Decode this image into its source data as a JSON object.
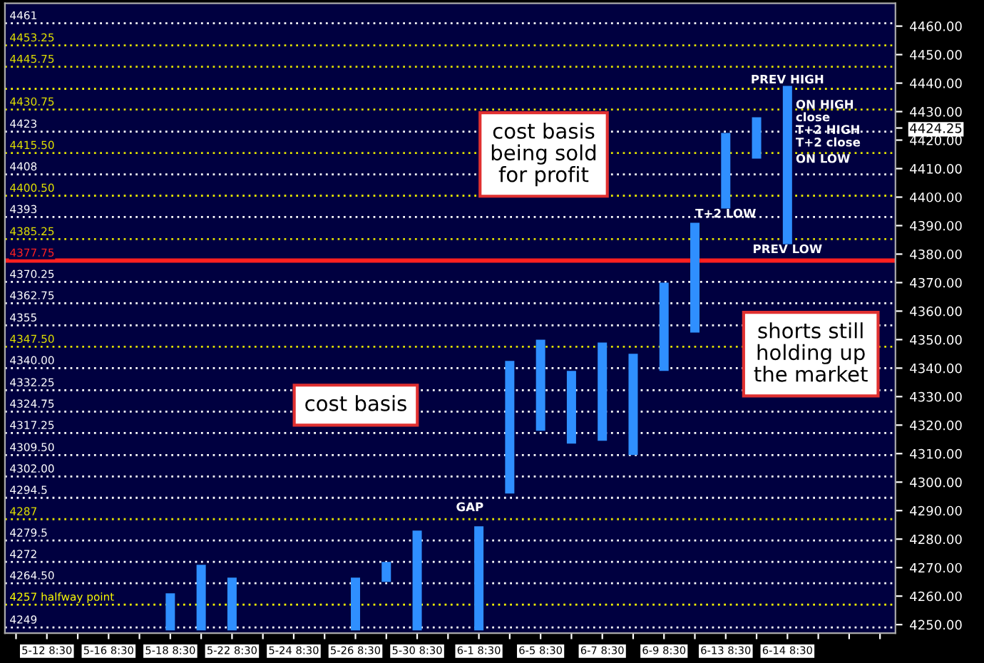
{
  "chart_data": {
    "type": "bar",
    "categories": [
      null,
      "5-12 8:30",
      null,
      "5-16 8:30",
      null,
      "5-18 8:30",
      null,
      "5-22 8:30",
      null,
      "5-24 8:30",
      null,
      "5-26 8:30",
      null,
      "5-30 8:30",
      null,
      "6-1 8:30",
      null,
      "6-5 8:30",
      null,
      "6-7 8:30",
      null,
      "6-9 8:30",
      null,
      "6-13 8:30",
      null,
      "6-14 8:30",
      null,
      null,
      null
    ],
    "base": [
      null,
      null,
      null,
      null,
      null,
      4248,
      4248,
      4248,
      null,
      null,
      null,
      4248,
      4265,
      4248,
      null,
      4248,
      4296,
      4318,
      4313.5,
      4314.5,
      4309.5,
      4339,
      4352.5,
      4396,
      4413.5,
      4383.5,
      null,
      null,
      null
    ],
    "values": [
      null,
      null,
      null,
      null,
      null,
      13,
      23,
      18.5,
      null,
      null,
      null,
      18.5,
      7,
      35,
      null,
      36.5,
      46.5,
      32,
      25.5,
      34.5,
      35.5,
      31,
      38.5,
      26.5,
      14.5,
      55.5,
      null,
      null,
      null
    ],
    "color": "#2f8fff",
    "ylim": [
      4247,
      4468
    ],
    "yticks": [
      {
        "value": 4250,
        "label": "4250.00"
      },
      {
        "value": 4260,
        "label": "4260.00"
      },
      {
        "value": 4270,
        "label": "4270.00"
      },
      {
        "value": 4280,
        "label": "4280.00"
      },
      {
        "value": 4290,
        "label": "4290.00"
      },
      {
        "value": 4300,
        "label": "4300.00"
      },
      {
        "value": 4310,
        "label": "4310.00"
      },
      {
        "value": 4320,
        "label": "4320.00"
      },
      {
        "value": 4330,
        "label": "4330.00"
      },
      {
        "value": 4340,
        "label": "4340.00"
      },
      {
        "value": 4350,
        "label": "4350.00"
      },
      {
        "value": 4360,
        "label": "4360.00"
      },
      {
        "value": 4370,
        "label": "4370.00"
      },
      {
        "value": 4380,
        "label": "4380.00"
      },
      {
        "value": 4390,
        "label": "4390.00"
      },
      {
        "value": 4400,
        "label": "4400.00"
      },
      {
        "value": 4410,
        "label": "4410.00"
      },
      {
        "value": 4420,
        "label": "4420.00"
      },
      {
        "value": 4424.25,
        "label": "4424.25"
      },
      {
        "value": 4430,
        "label": "4430.00"
      },
      {
        "value": 4440,
        "label": "4440.00"
      },
      {
        "value": 4450,
        "label": "4450.00"
      },
      {
        "value": 4460,
        "label": "4460.00"
      }
    ],
    "grid": false,
    "ref_lines": [
      {
        "axis": "y",
        "value": 4461,
        "label": "4461",
        "color": "#ffffff",
        "line_style": "dotted"
      },
      {
        "axis": "y",
        "value": 4453.25,
        "label": "4453.25",
        "color": "#e0e000",
        "line_style": "dotted"
      },
      {
        "axis": "y",
        "value": 4445.75,
        "label": "4445.75",
        "color": "#e0e000",
        "line_style": "dotted"
      },
      {
        "axis": "y",
        "value": 4438,
        "color": "#ffff00",
        "line_style": "dotted"
      },
      {
        "axis": "y",
        "value": 4430.75,
        "label": "4430.75",
        "color": "#e0e000",
        "line_style": "dotted"
      },
      {
        "axis": "y",
        "value": 4423,
        "label": "4423",
        "color": "#ffffff",
        "line_style": "dotted"
      },
      {
        "axis": "y",
        "value": 4415.5,
        "label": "4415.50",
        "color": "#e0e000",
        "line_style": "dotted"
      },
      {
        "axis": "y",
        "value": 4408,
        "label": "4408",
        "color": "#ffffff",
        "line_style": "dotted"
      },
      {
        "axis": "y",
        "value": 4400.5,
        "label": "4400.50",
        "color": "#e0e000",
        "line_style": "dotted"
      },
      {
        "axis": "y",
        "value": 4393,
        "label": "4393",
        "color": "#ffffff",
        "line_style": "dotted"
      },
      {
        "axis": "y",
        "value": 4385.25,
        "label": "4385.25",
        "color": "#e0e000",
        "line_style": "dotted"
      },
      {
        "axis": "y",
        "value": 4377.75,
        "label": "4377.75",
        "color": "#ff2020",
        "line_style": "solid"
      },
      {
        "axis": "y",
        "value": 4370.25,
        "label": "4370.25",
        "color": "#ffffff",
        "line_style": "dotted"
      },
      {
        "axis": "y",
        "value": 4362.75,
        "label": "4362.75",
        "color": "#ffffff",
        "line_style": "dotted"
      },
      {
        "axis": "y",
        "value": 4355,
        "label": "4355",
        "color": "#ffffff",
        "line_style": "dotted"
      },
      {
        "axis": "y",
        "value": 4347.5,
        "label": "4347.50",
        "color": "#e0e000",
        "line_style": "dotted"
      },
      {
        "axis": "y",
        "value": 4340,
        "label": "4340.00",
        "color": "#ffffff",
        "line_style": "dotted"
      },
      {
        "axis": "y",
        "value": 4332.25,
        "label": "4332.25",
        "color": "#ffffff",
        "line_style": "dotted"
      },
      {
        "axis": "y",
        "value": 4324.75,
        "label": "4324.75",
        "color": "#ffffff",
        "line_style": "dotted"
      },
      {
        "axis": "y",
        "value": 4317.25,
        "label": "4317.25",
        "color": "#ffffff",
        "line_style": "dotted"
      },
      {
        "axis": "y",
        "value": 4309.5,
        "label": "4309.50",
        "color": "#ffffff",
        "line_style": "dotted"
      },
      {
        "axis": "y",
        "value": 4302,
        "label": "4302.00",
        "color": "#ffffff",
        "line_style": "dotted"
      },
      {
        "axis": "y",
        "value": 4294.5,
        "label": "4294.5",
        "color": "#ffffff",
        "line_style": "dotted"
      },
      {
        "axis": "y",
        "value": 4287,
        "label": "4287",
        "color": "#e0e000",
        "line_style": "dotted"
      },
      {
        "axis": "y",
        "value": 4279.5,
        "label": "4279.5",
        "color": "#ffffff",
        "line_style": "dotted"
      },
      {
        "axis": "y",
        "value": 4272,
        "label": "4272",
        "color": "#ffffff",
        "line_style": "dotted"
      },
      {
        "axis": "y",
        "value": 4264.5,
        "label": "4264.50",
        "color": "#ffffff",
        "line_style": "dotted"
      },
      {
        "axis": "y",
        "value": 4257,
        "label": "4257 halfway point",
        "color": "#ffff00",
        "line_style": "dotted"
      },
      {
        "axis": "y",
        "value": 4249,
        "label": "4249",
        "color": "#ffffff",
        "line_style": "dotted"
      }
    ],
    "annotations": [
      "cost basis\nbeing sold\nfor profit",
      "cost basis",
      "shorts still\nholding up\nthe market",
      "GAP",
      "ON HIGH",
      "close",
      "T+2 HIGH",
      "T+2 close",
      "ON LOW",
      {
        "text": "T+2 LOW",
        "x": "6-13 8:30",
        "y": 4396
      },
      {
        "text": "PREV HIGH",
        "x": "6-14 8:30",
        "y": 4439
      },
      {
        "text": "PREV LOW",
        "x": "6-14 8:30",
        "y": 4383.5
      }
    ]
  }
}
